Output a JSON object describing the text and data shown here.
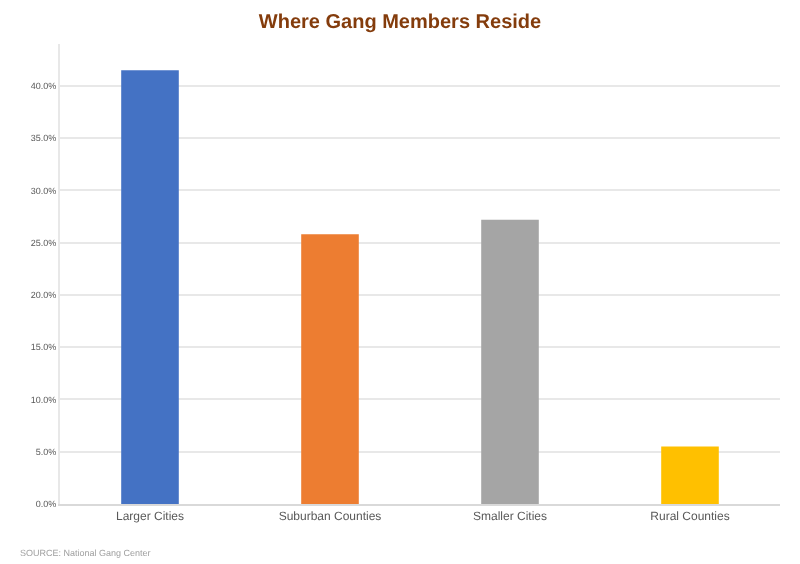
{
  "chart_data": {
    "type": "bar",
    "title": "Where Gang Members Reside",
    "categories": [
      "Larger Cities",
      "Suburban Counties",
      "Smaller Cities",
      "Rural Counties"
    ],
    "values": [
      41.5,
      25.8,
      27.2,
      5.5
    ],
    "colors": [
      "#4472c4",
      "#ed7d31",
      "#a5a5a5",
      "#ffc000"
    ],
    "ylim": [
      0,
      44
    ],
    "yticks": [
      {
        "value": 0,
        "label": "0.0%"
      },
      {
        "value": 5,
        "label": "5.0%"
      },
      {
        "value": 10,
        "label": "10.0%"
      },
      {
        "value": 15,
        "label": "15.0%"
      },
      {
        "value": 20,
        "label": "20.0%"
      },
      {
        "value": 25,
        "label": "25.0%"
      },
      {
        "value": 30,
        "label": "30.0%"
      },
      {
        "value": 35,
        "label": "35.0%"
      },
      {
        "value": 40,
        "label": "40.0%"
      }
    ],
    "grid": "y",
    "annotations": [
      "SOURCE: National Gang Center"
    ]
  }
}
